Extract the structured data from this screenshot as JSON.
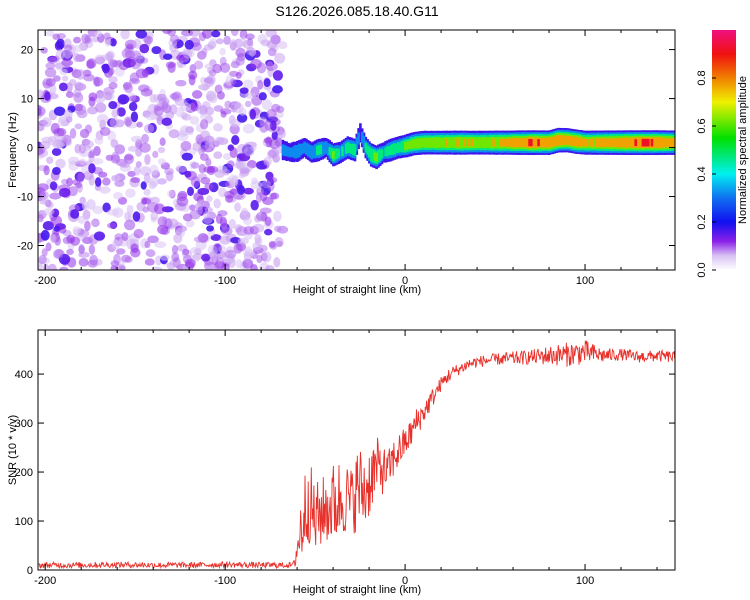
{
  "chart_data": [
    {
      "type": "heatmap",
      "title": "S126.2026.085.18.40.G11",
      "xlabel": "Height of straight line (km)",
      "ylabel": "Frequency (Hz)",
      "xlim": [
        -204,
        150
      ],
      "ylim": [
        -25,
        24
      ],
      "xticks": [
        -200,
        -100,
        0,
        100
      ],
      "yticks": [
        -20,
        -10,
        0,
        10,
        20
      ],
      "colorbar": {
        "label": "Normalized spectral amplitude",
        "range": [
          0,
          1
        ],
        "ticks": [
          "0.0",
          "0.2",
          "0.4",
          "0.6",
          "0.8"
        ]
      },
      "noise_region": {
        "x_from": -204,
        "x_to": -68,
        "amplitude_range": [
          0.0,
          0.15
        ],
        "blob_count": 900
      },
      "ridge": {
        "x": [
          -68,
          -64,
          -60,
          -56,
          -52,
          -48,
          -44,
          -40,
          -36,
          -32,
          -28,
          -25,
          -22,
          -19,
          -16,
          -12,
          -8,
          -4,
          0,
          5,
          10,
          20,
          30,
          40,
          50,
          60,
          70,
          80,
          85,
          90,
          95,
          100,
          110,
          120,
          130,
          140,
          150
        ],
        "freq": [
          -0.5,
          -1,
          -0.8,
          0,
          -1,
          -0.5,
          0,
          -1.5,
          -1,
          0,
          -0.5,
          3,
          0,
          -1.5,
          -2,
          -1,
          -0.5,
          0,
          0.3,
          0.8,
          1,
          1,
          1,
          1,
          1,
          1,
          1,
          1,
          1.5,
          1.5,
          1.2,
          1,
          1,
          1,
          1,
          1,
          1
        ],
        "amp": [
          0.35,
          0.3,
          0.4,
          0.35,
          0.4,
          0.5,
          0.35,
          0.6,
          0.45,
          0.5,
          0.55,
          0.3,
          0.45,
          0.6,
          0.65,
          0.4,
          0.55,
          0.5,
          0.6,
          0.65,
          0.7,
          0.7,
          0.75,
          0.7,
          0.75,
          0.8,
          0.9,
          0.85,
          0.9,
          0.8,
          0.85,
          0.75,
          0.8,
          0.85,
          0.9,
          0.9,
          0.8
        ],
        "width_hz": 1.8
      }
    },
    {
      "type": "line",
      "xlabel": "Height of straight line (km)",
      "ylabel": "SNR (10 * v/v)",
      "xlim": [
        -204,
        150
      ],
      "ylim": [
        0,
        490
      ],
      "xticks": [
        -200,
        -100,
        0,
        100
      ],
      "yticks": [
        0,
        100,
        200,
        300,
        400
      ],
      "series": [
        {
          "name": "SNR",
          "color": "#e8302a",
          "x": [
            -204,
            -180,
            -160,
            -140,
            -120,
            -100,
            -80,
            -62,
            -58,
            -54,
            -50,
            -46,
            -42,
            -38,
            -34,
            -30,
            -26,
            -22,
            -18,
            -14,
            -10,
            -6,
            -2,
            2,
            6,
            10,
            15,
            20,
            25,
            30,
            35,
            40,
            50,
            60,
            70,
            80,
            90,
            100,
            110,
            120,
            130,
            140,
            150
          ],
          "y": [
            10,
            10,
            11,
            10,
            10,
            11,
            10,
            10,
            80,
            150,
            100,
            120,
            130,
            140,
            150,
            140,
            170,
            160,
            200,
            210,
            200,
            230,
            250,
            270,
            300,
            320,
            350,
            380,
            400,
            410,
            420,
            425,
            430,
            432,
            435,
            438,
            440,
            445,
            438,
            440,
            435,
            437,
            435
          ],
          "noise": [
            6,
            6,
            6,
            6,
            6,
            6,
            6,
            6,
            80,
            90,
            80,
            70,
            80,
            90,
            80,
            70,
            90,
            80,
            70,
            60,
            40,
            40,
            35,
            30,
            30,
            25,
            20,
            15,
            15,
            12,
            12,
            12,
            12,
            14,
            15,
            20,
            25,
            25,
            15,
            12,
            12,
            12,
            12
          ]
        }
      ]
    }
  ]
}
